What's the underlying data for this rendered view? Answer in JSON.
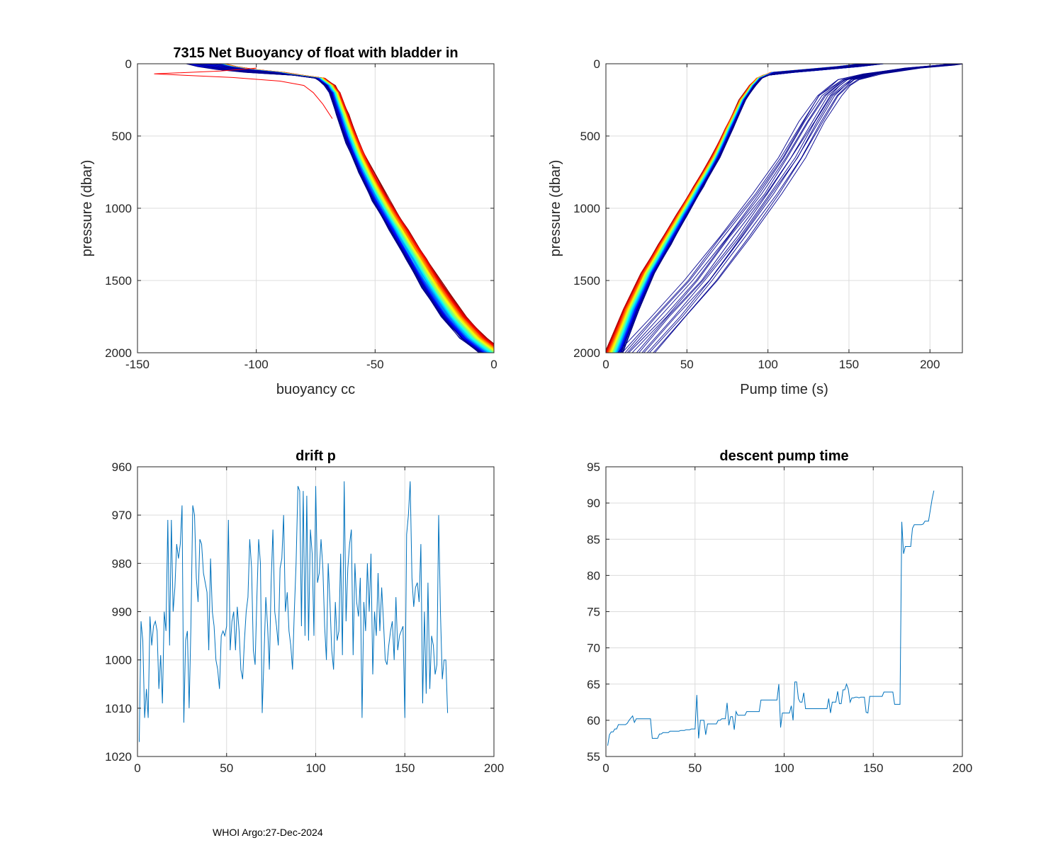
{
  "footer": "WHOI Argo:27-Dec-2024",
  "chart_data": [
    {
      "id": "buoyancy",
      "type": "line",
      "title": "7315 Net Buoyancy of float with bladder in",
      "xlabel": "buoyancy cc",
      "ylabel": "pressure (dbar)",
      "xlim": [
        -150,
        0
      ],
      "ylim": [
        0,
        2000
      ],
      "y_reversed": true,
      "grid": true,
      "xticks": [
        -150,
        -100,
        -50,
        0
      ],
      "yticks": [
        0,
        500,
        1000,
        1500,
        2000
      ],
      "colormap": "jet",
      "profile_count": 150,
      "template_profile": {
        "x": [
          -123,
          -118,
          -110,
          -98,
          -84,
          -75,
          -71,
          -69,
          -66,
          -62,
          -57,
          -51,
          -44,
          -37,
          -30,
          -22,
          -14,
          -6
        ],
        "y": [
          0,
          20,
          40,
          60,
          80,
          100,
          150,
          200,
          350,
          550,
          750,
          950,
          1150,
          1350,
          1550,
          1750,
          1900,
          2000
        ]
      },
      "outlier_profile": {
        "x": [
          -100,
          -115,
          -143,
          -110,
          -90,
          -80,
          -76,
          -72,
          -70,
          -68
        ],
        "y": [
          30,
          50,
          70,
          95,
          120,
          150,
          200,
          280,
          330,
          380
        ]
      }
    },
    {
      "id": "pump",
      "type": "line",
      "xlabel": "Pump time (s)",
      "ylabel": "pressure (dbar)",
      "xlim": [
        0,
        220
      ],
      "ylim": [
        0,
        2000
      ],
      "y_reversed": true,
      "grid": true,
      "xticks": [
        0,
        50,
        100,
        150,
        200
      ],
      "yticks": [
        0,
        500,
        1000,
        1500,
        2000
      ],
      "colormap": "jet",
      "profile_count": 150,
      "template_profile": {
        "x": [
          165,
          150,
          130,
          110,
          100,
          96,
          92,
          86,
          78,
          70,
          60,
          50,
          40,
          30,
          20,
          10
        ],
        "y": [
          0,
          20,
          40,
          60,
          80,
          100,
          150,
          250,
          450,
          650,
          850,
          1050,
          1250,
          1450,
          1700,
          2000
        ]
      },
      "late_group": {
        "count": 14,
        "x": [
          218,
          210,
          190,
          165,
          150,
          145,
          138,
          128,
          115,
          100,
          80,
          60,
          40,
          20
        ],
        "y": [
          0,
          10,
          30,
          70,
          110,
          150,
          220,
          400,
          650,
          900,
          1200,
          1500,
          1750,
          2000
        ]
      }
    },
    {
      "id": "drift_p",
      "type": "line",
      "title": "drift p",
      "xlim": [
        0,
        200
      ],
      "ylim": [
        960,
        1020
      ],
      "y_reversed": true,
      "grid": true,
      "xticks": [
        0,
        50,
        100,
        150,
        200
      ],
      "yticks": [
        960,
        970,
        980,
        990,
        1000,
        1010,
        1020
      ],
      "color": "#0072BD",
      "x_start": 1,
      "x_step": 1,
      "values": [
        1017,
        992,
        996,
        1012,
        1006,
        1012,
        991,
        997,
        993,
        992,
        994,
        1006,
        999,
        1009,
        990,
        994,
        971,
        997,
        971,
        990,
        985,
        976,
        979,
        976,
        968,
        1013,
        996,
        994,
        1010,
        993,
        968,
        970,
        983,
        988,
        975,
        976,
        982,
        984,
        986,
        998,
        979,
        990,
        993,
        1000,
        1002,
        1006,
        995,
        994,
        995,
        993,
        971,
        998,
        992,
        990,
        998,
        989,
        994,
        1002,
        1004,
        996,
        990,
        987,
        975,
        981,
        998,
        1001,
        987,
        975,
        980,
        1011,
        999,
        987,
        993,
        1002,
        984,
        973,
        990,
        993,
        997,
        981,
        979,
        970,
        990,
        986,
        994,
        997,
        1002,
        990,
        980,
        964,
        965,
        993,
        965,
        995,
        966,
        996,
        973,
        978,
        995,
        964,
        984,
        982,
        975,
        981,
        993,
        1000,
        980,
        988,
        998,
        1002,
        988,
        996,
        994,
        978,
        999,
        963,
        992,
        981,
        976,
        973,
        999,
        980,
        988,
        991,
        983,
        1012,
        988,
        994,
        980,
        990,
        978,
        1003,
        990,
        995,
        982,
        994,
        985,
        992,
        1000,
        1001,
        997,
        994,
        992,
        1000,
        987,
        998,
        995,
        994,
        993,
        1012,
        974,
        970,
        963,
        983,
        989,
        985,
        984,
        988,
        976,
        1009,
        990,
        1007,
        984,
        1006,
        995,
        997,
        1003,
        1001,
        970,
        990,
        1004,
        1000,
        1000,
        1011
      ]
    },
    {
      "id": "descent_pump",
      "type": "line",
      "title": "descent pump time",
      "xlim": [
        0,
        200
      ],
      "ylim": [
        55,
        95
      ],
      "grid": true,
      "xticks": [
        0,
        50,
        100,
        150,
        200
      ],
      "yticks": [
        55,
        60,
        65,
        70,
        75,
        80,
        85,
        90,
        95
      ],
      "color": "#0072BD",
      "x_start": 1,
      "x_step": 1,
      "values": [
        56.5,
        58,
        58.4,
        58.4,
        58.8,
        58.8,
        59.4,
        59.4,
        59.4,
        59.4,
        59.4,
        59.6,
        60,
        60.3,
        60.6,
        59.7,
        60.2,
        60.2,
        60.2,
        60.2,
        60.2,
        60.2,
        60.2,
        60.2,
        60.2,
        57.5,
        57.5,
        57.5,
        57.5,
        58.1,
        58.1,
        58.3,
        58.3,
        58.3,
        58.3,
        58.5,
        58.5,
        58.5,
        58.5,
        58.5,
        58.5,
        58.6,
        58.6,
        58.6,
        58.7,
        58.7,
        58.7,
        58.8,
        58.8,
        58.8,
        63.5,
        57.5,
        60,
        60,
        60,
        58,
        59.5,
        59.5,
        59.5,
        59.5,
        59.5,
        59.5,
        60,
        60,
        60.2,
        60.2,
        60.2,
        62.4,
        59.3,
        60.5,
        60.5,
        58.7,
        61.2,
        60.7,
        60.7,
        60.7,
        60.7,
        60.7,
        61.2,
        61.2,
        61.2,
        61.2,
        61.2,
        61.2,
        61.2,
        61.2,
        62.8,
        62.8,
        62.8,
        62.8,
        62.8,
        62.8,
        62.8,
        62.8,
        62.8,
        62.8,
        65,
        59,
        61,
        61,
        61,
        61,
        61,
        62,
        60,
        65.3,
        65.3,
        63,
        62.5,
        62.5,
        63.8,
        61.6,
        61.6,
        61.6,
        61.6,
        61.6,
        61.6,
        61.6,
        61.6,
        61.6,
        61.6,
        61.6,
        61.6,
        61.6,
        63,
        61,
        62.5,
        62.5,
        62.5,
        64,
        62.3,
        62.3,
        64.2,
        64.2,
        65,
        64.3,
        62.5,
        63.1,
        63.1,
        63.2,
        63.2,
        63.1,
        63.2,
        63.2,
        63.2,
        61.1,
        61,
        63.3,
        63.3,
        63.3,
        63.3,
        63.3,
        63.3,
        63.3,
        63.3,
        63.9,
        63.9,
        63.9,
        63.9,
        63.9,
        63.9,
        62.2,
        62.2,
        62.2,
        62.2,
        87.4,
        83,
        84,
        84,
        84,
        84,
        86.5,
        87,
        87,
        87,
        87,
        87,
        87.1,
        87.5,
        87.5,
        87.5,
        89,
        90.5,
        91.7
      ]
    }
  ]
}
